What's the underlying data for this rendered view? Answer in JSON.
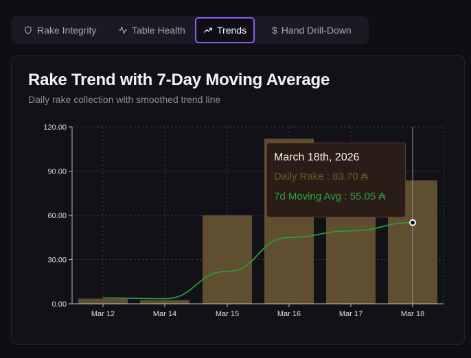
{
  "tabs": [
    {
      "label": "Rake Integrity",
      "icon": "shield-icon",
      "active": false
    },
    {
      "label": "Table Health",
      "icon": "activity-icon",
      "active": false
    },
    {
      "label": "Trends",
      "icon": "trending-up-icon",
      "active": true
    },
    {
      "label": "Hand Drill-Down",
      "icon": "dollar-icon",
      "active": false
    }
  ],
  "card": {
    "title": "Rake Trend with 7-Day Moving Average",
    "subtitle": "Daily rake collection with smoothed trend line"
  },
  "tooltip": {
    "date": "March 18th, 2026",
    "rake_label": "Daily Rake",
    "rake_value": "83.70 ₳",
    "ma_label": "7d Moving Avg",
    "ma_value": "55.05 ₳"
  },
  "colors": {
    "bar": "#5f4e2f",
    "line": "#2e9a3a",
    "accent": "#8b5cf6"
  },
  "chart_data": {
    "type": "bar",
    "title": "Rake Trend with 7-Day Moving Average",
    "subtitle": "Daily rake collection with smoothed trend line",
    "categories": [
      "Mar 12",
      "Mar 14",
      "Mar 15",
      "Mar 16",
      "Mar 17",
      "Mar 18"
    ],
    "y_ticks": [
      "0.00",
      "30.00",
      "60.00",
      "90.00",
      "120.00"
    ],
    "ylim": [
      0,
      120
    ],
    "grid": true,
    "series": [
      {
        "name": "Daily Rake",
        "type": "bar",
        "values": [
          3.5,
          2.5,
          60.0,
          112.0,
          80.0,
          83.7
        ]
      },
      {
        "name": "7d Moving Avg",
        "type": "line",
        "values": [
          4.0,
          3.5,
          22.0,
          45.0,
          49.5,
          55.05
        ]
      }
    ],
    "highlight_index": 5
  }
}
